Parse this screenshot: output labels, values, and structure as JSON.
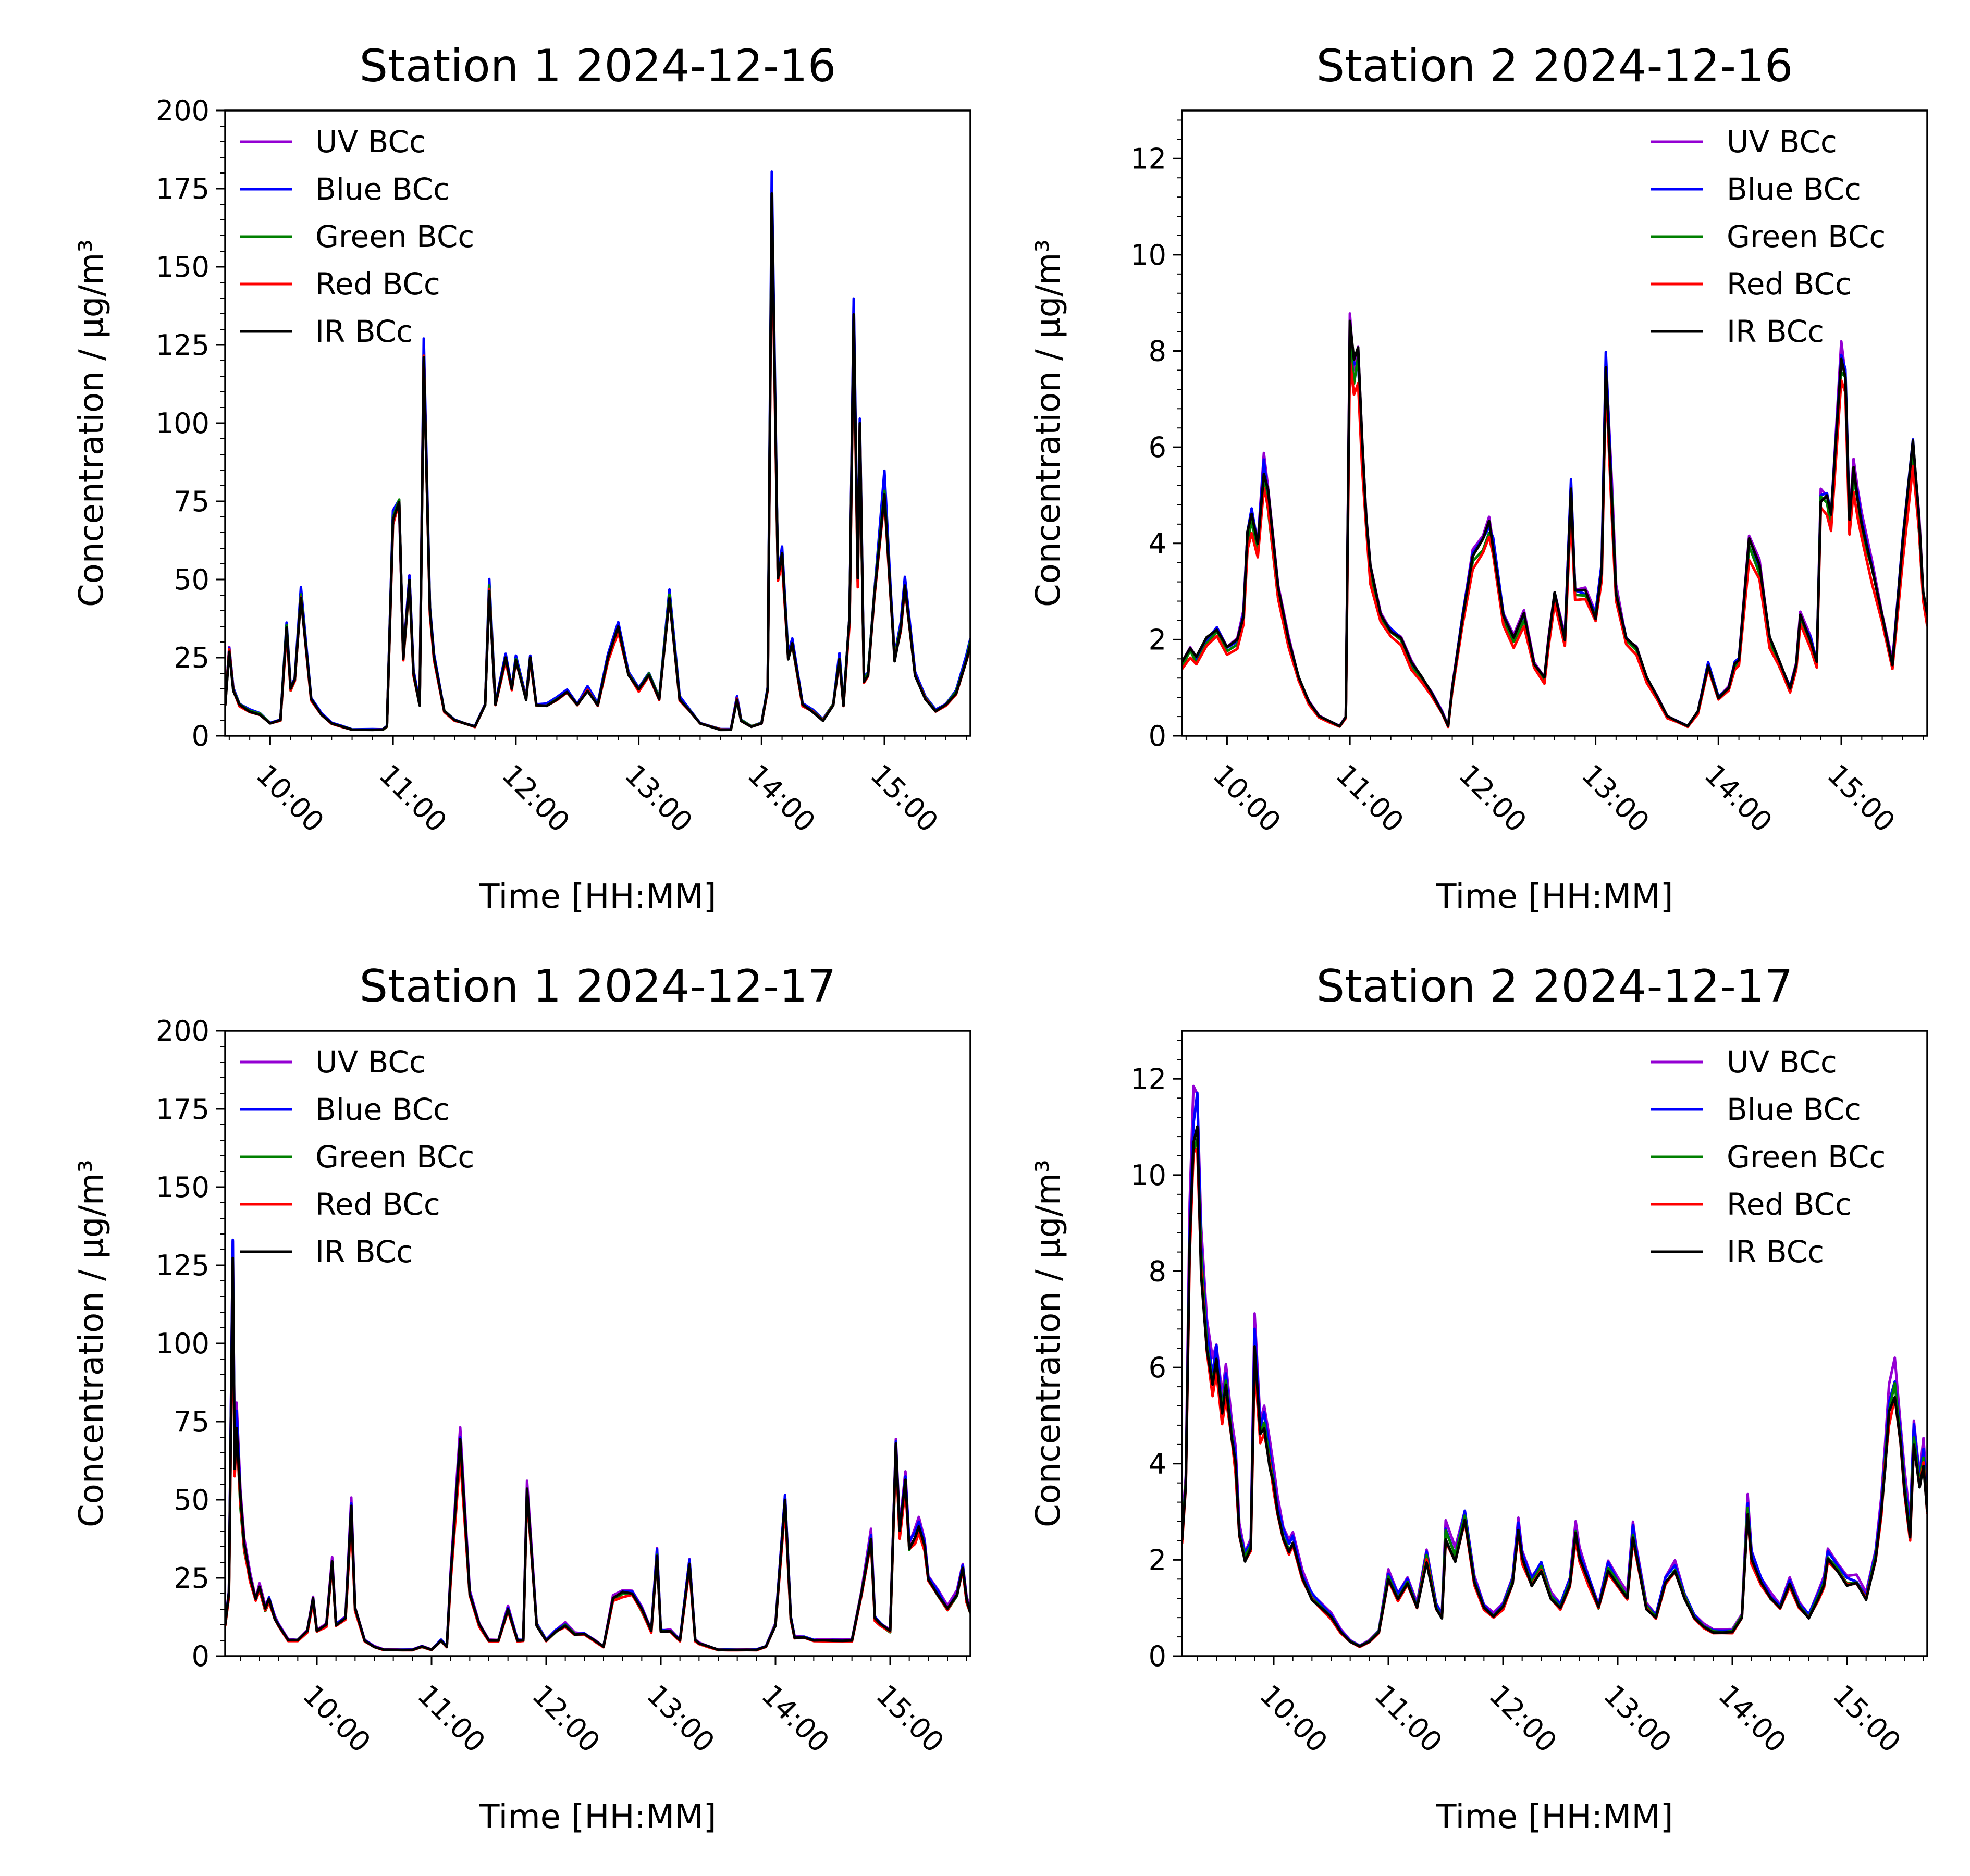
{
  "colors": {
    "UV BCc": "#9400d3",
    "Blue BCc": "#0000ff",
    "Green BCc": "#008000",
    "Red BCc": "#ff0000",
    "IR BCc": "#000000"
  },
  "chart_data": [
    {
      "type": "line",
      "title": "Station 1 2024-12-16",
      "xlabel": "Time [HH:MM]",
      "ylabel": "Concentration / μg/m³",
      "xlim": [
        "09:38",
        "15:42"
      ],
      "ylim": [
        0,
        200
      ],
      "yticks": [
        0,
        25,
        50,
        75,
        100,
        125,
        150,
        175,
        200
      ],
      "xticks": [
        "10:00",
        "11:00",
        "12:00",
        "13:00",
        "14:00",
        "15:00"
      ],
      "grid": false,
      "legend": "top-left",
      "series": [
        {
          "name": "UV BCc",
          "scale": 1.0
        },
        {
          "name": "Blue BCc",
          "scale": 1.03
        },
        {
          "name": "Green BCc",
          "scale": 0.99
        },
        {
          "name": "Red BCc",
          "scale": 0.97
        },
        {
          "name": "IR BCc",
          "scale": 0.98
        }
      ],
      "x": [
        "09:38",
        "09:40",
        "09:42",
        "09:45",
        "09:50",
        "09:55",
        "10:00",
        "10:05",
        "10:08",
        "10:10",
        "10:12",
        "10:15",
        "10:18",
        "10:20",
        "10:25",
        "10:30",
        "10:35",
        "10:40",
        "10:50",
        "10:55",
        "10:57",
        "11:00",
        "11:03",
        "11:05",
        "11:08",
        "11:10",
        "11:13",
        "11:15",
        "11:18",
        "11:20",
        "11:25",
        "11:30",
        "11:35",
        "11:40",
        "11:45",
        "11:47",
        "11:50",
        "11:55",
        "11:58",
        "12:00",
        "12:05",
        "12:07",
        "12:10",
        "12:15",
        "12:20",
        "12:25",
        "12:30",
        "12:35",
        "12:40",
        "12:45",
        "12:50",
        "12:55",
        "13:00",
        "13:05",
        "13:10",
        "13:15",
        "13:20",
        "13:25",
        "13:30",
        "13:40",
        "13:45",
        "13:48",
        "13:50",
        "13:55",
        "14:00",
        "14:03",
        "14:05",
        "14:08",
        "14:10",
        "14:13",
        "14:15",
        "14:20",
        "14:25",
        "14:30",
        "14:35",
        "14:38",
        "14:40",
        "14:43",
        "14:45",
        "14:47",
        "14:48",
        "14:50",
        "14:52",
        "14:55",
        "15:00",
        "15:03",
        "15:05",
        "15:08",
        "15:10",
        "15:15",
        "15:20",
        "15:25",
        "15:30",
        "15:35",
        "15:40",
        "15:42"
      ],
      "values": [
        10,
        28,
        15,
        10,
        8,
        7,
        4,
        5,
        35,
        15,
        18,
        45,
        25,
        12,
        7,
        4,
        3,
        2,
        2,
        2,
        3,
        70,
        75,
        25,
        50,
        20,
        10,
        126,
        40,
        25,
        8,
        5,
        4,
        3,
        10,
        48,
        10,
        25,
        15,
        25,
        12,
        25,
        10,
        10,
        12,
        14,
        10,
        15,
        10,
        25,
        35,
        20,
        15,
        20,
        12,
        45,
        12,
        8,
        4,
        2,
        2,
        12,
        5,
        3,
        4,
        15,
        175,
        50,
        58,
        25,
        30,
        10,
        8,
        5,
        10,
        25,
        10,
        38,
        135,
        50,
        100,
        18,
        20,
        45,
        80,
        45,
        25,
        35,
        48,
        20,
        12,
        8,
        10,
        14,
        25,
        30
      ]
    },
    {
      "type": "line",
      "title": "Station 2 2024-12-16",
      "xlabel": "Time [HH:MM]",
      "ylabel": "Concentration / μg/m³",
      "xlim": [
        "09:38",
        "15:42"
      ],
      "ylim": [
        0,
        13
      ],
      "yticks": [
        0,
        2,
        4,
        6,
        8,
        10,
        12
      ],
      "xticks": [
        "10:00",
        "11:00",
        "12:00",
        "13:00",
        "14:00",
        "15:00"
      ],
      "grid": false,
      "legend": "top-right",
      "series": [
        {
          "name": "UV BCc",
          "scale": 1.02
        },
        {
          "name": "Blue BCc",
          "scale": 1.0
        },
        {
          "name": "Green BCc",
          "scale": 0.97
        },
        {
          "name": "Red BCc",
          "scale": 0.93
        },
        {
          "name": "IR BCc",
          "scale": 1.0
        }
      ],
      "x": [
        "09:38",
        "09:42",
        "09:45",
        "09:50",
        "09:55",
        "10:00",
        "10:05",
        "10:08",
        "10:10",
        "10:12",
        "10:15",
        "10:18",
        "10:20",
        "10:25",
        "10:30",
        "10:35",
        "10:40",
        "10:45",
        "10:50",
        "10:55",
        "10:58",
        "11:00",
        "11:02",
        "11:04",
        "11:06",
        "11:08",
        "11:10",
        "11:15",
        "11:20",
        "11:25",
        "11:30",
        "11:35",
        "11:40",
        "11:45",
        "11:48",
        "11:50",
        "11:55",
        "12:00",
        "12:05",
        "12:08",
        "12:10",
        "12:15",
        "12:20",
        "12:25",
        "12:30",
        "12:35",
        "12:37",
        "12:40",
        "12:45",
        "12:48",
        "12:50",
        "12:55",
        "13:00",
        "13:03",
        "13:05",
        "13:08",
        "13:10",
        "13:15",
        "13:20",
        "13:25",
        "13:30",
        "13:35",
        "13:40",
        "13:45",
        "13:50",
        "13:55",
        "14:00",
        "14:05",
        "14:08",
        "14:10",
        "14:15",
        "14:20",
        "14:25",
        "14:30",
        "14:35",
        "14:38",
        "14:40",
        "14:45",
        "14:48",
        "14:50",
        "14:53",
        "14:55",
        "15:00",
        "15:02",
        "15:04",
        "15:06",
        "15:08",
        "15:10",
        "15:15",
        "15:20",
        "15:25",
        "15:30",
        "15:35",
        "15:38",
        "15:40",
        "15:42"
      ],
      "values": [
        1.5,
        1.8,
        1.6,
        2.0,
        2.2,
        1.8,
        2.0,
        2.5,
        4.2,
        4.6,
        4.0,
        5.6,
        5.0,
        3.0,
        2.0,
        1.2,
        0.7,
        0.4,
        0.3,
        0.2,
        0.4,
        8.4,
        7.6,
        8.0,
        6.0,
        4.5,
        3.5,
        2.5,
        2.2,
        2.0,
        1.5,
        1.2,
        0.9,
        0.5,
        0.2,
        1.0,
        2.5,
        3.8,
        4.0,
        4.4,
        4.0,
        2.5,
        2.0,
        2.5,
        1.5,
        1.2,
        2.0,
        3.0,
        2.0,
        5.2,
        3.0,
        3.0,
        2.5,
        3.5,
        7.8,
        5.0,
        3.0,
        2.0,
        1.8,
        1.2,
        0.8,
        0.4,
        0.3,
        0.2,
        0.5,
        1.5,
        0.8,
        1.0,
        1.5,
        1.6,
        4.0,
        3.5,
        2.0,
        1.5,
        1.0,
        1.5,
        2.5,
        2.0,
        1.5,
        5.0,
        5.0,
        4.5,
        8.0,
        7.5,
        4.5,
        5.5,
        5.0,
        4.5,
        3.5,
        2.5,
        1.5,
        4.0,
        6.0,
        4.5,
        3.0,
        2.5
      ]
    },
    {
      "type": "line",
      "title": "Station 1 2024-12-17",
      "xlabel": "Time [HH:MM]",
      "ylabel": "Concentration / μg/m³",
      "xlim": [
        "09:12",
        "15:42"
      ],
      "ylim": [
        0,
        200
      ],
      "yticks": [
        0,
        25,
        50,
        75,
        100,
        125,
        150,
        175,
        200
      ],
      "xticks": [
        "10:00",
        "11:00",
        "12:00",
        "13:00",
        "14:00",
        "15:00"
      ],
      "grid": false,
      "legend": "top-left",
      "series": [
        {
          "name": "UV BCc",
          "scale": 1.05
        },
        {
          "name": "Blue BCc",
          "scale": 1.02
        },
        {
          "name": "Green BCc",
          "scale": 0.98
        },
        {
          "name": "Red BCc",
          "scale": 0.96
        },
        {
          "name": "IR BCc",
          "scale": 1.0
        }
      ],
      "x": [
        "09:12",
        "09:14",
        "09:16",
        "09:17",
        "09:18",
        "09:20",
        "09:22",
        "09:25",
        "09:28",
        "09:30",
        "09:33",
        "09:35",
        "09:38",
        "09:40",
        "09:45",
        "09:50",
        "09:55",
        "09:58",
        "10:00",
        "10:05",
        "10:08",
        "10:10",
        "10:15",
        "10:18",
        "10:20",
        "10:25",
        "10:30",
        "10:35",
        "10:40",
        "10:45",
        "10:50",
        "10:55",
        "11:00",
        "11:05",
        "11:08",
        "11:10",
        "11:15",
        "11:20",
        "11:25",
        "11:30",
        "11:35",
        "11:40",
        "11:45",
        "11:48",
        "11:50",
        "11:55",
        "12:00",
        "12:05",
        "12:10",
        "12:15",
        "12:20",
        "12:25",
        "12:30",
        "12:35",
        "12:40",
        "12:45",
        "12:50",
        "12:55",
        "12:58",
        "13:00",
        "13:05",
        "13:10",
        "13:15",
        "13:18",
        "13:20",
        "13:25",
        "13:30",
        "13:35",
        "13:40",
        "13:45",
        "13:50",
        "13:55",
        "14:00",
        "14:05",
        "14:08",
        "14:10",
        "14:15",
        "14:20",
        "14:25",
        "14:30",
        "14:35",
        "14:40",
        "14:45",
        "14:50",
        "14:52",
        "14:55",
        "15:00",
        "15:03",
        "15:05",
        "15:08",
        "15:10",
        "15:13",
        "15:15",
        "15:18",
        "15:20",
        "15:25",
        "15:30",
        "15:35",
        "15:38",
        "15:40",
        "15:42"
      ],
      "values": [
        10,
        20,
        127,
        60,
        75,
        50,
        35,
        25,
        18,
        22,
        15,
        18,
        12,
        10,
        5,
        5,
        8,
        18,
        8,
        10,
        30,
        10,
        12,
        47,
        15,
        5,
        3,
        2,
        2,
        2,
        2,
        3,
        2,
        5,
        3,
        25,
        68,
        20,
        10,
        5,
        5,
        15,
        5,
        5,
        53,
        10,
        5,
        8,
        10,
        7,
        7,
        5,
        3,
        18,
        20,
        20,
        15,
        8,
        33,
        8,
        8,
        5,
        30,
        5,
        4,
        3,
        2,
        2,
        2,
        2,
        2,
        3,
        10,
        50,
        12,
        6,
        6,
        5,
        5,
        5,
        5,
        5,
        20,
        38,
        12,
        10,
        8,
        68,
        40,
        55,
        35,
        38,
        42,
        35,
        25,
        20,
        15,
        20,
        28,
        18,
        14
      ]
    },
    {
      "type": "line",
      "title": "Station 2 2024-12-17",
      "xlabel": "Time [HH:MM]",
      "ylabel": "Concentration / μg/m³",
      "xlim": [
        "09:12",
        "15:42"
      ],
      "ylim": [
        0,
        13
      ],
      "yticks": [
        0,
        2,
        4,
        6,
        8,
        10,
        12
      ],
      "xticks": [
        "10:00",
        "11:00",
        "12:00",
        "13:00",
        "14:00",
        "15:00"
      ],
      "grid": false,
      "legend": "top-right",
      "series": [
        {
          "name": "UV BCc",
          "scale": 1.1
        },
        {
          "name": "Blue BCc",
          "scale": 1.06
        },
        {
          "name": "Green BCc",
          "scale": 1.02
        },
        {
          "name": "Red BCc",
          "scale": 0.98
        },
        {
          "name": "IR BCc",
          "scale": 1.0
        }
      ],
      "x": [
        "09:12",
        "09:14",
        "09:16",
        "09:18",
        "09:20",
        "09:22",
        "09:25",
        "09:28",
        "09:30",
        "09:33",
        "09:35",
        "09:38",
        "09:40",
        "09:42",
        "09:45",
        "09:48",
        "09:50",
        "09:53",
        "09:55",
        "09:58",
        "10:00",
        "10:02",
        "10:05",
        "10:08",
        "10:10",
        "10:15",
        "10:20",
        "10:25",
        "10:30",
        "10:35",
        "10:40",
        "10:45",
        "10:50",
        "10:55",
        "11:00",
        "11:05",
        "11:10",
        "11:15",
        "11:20",
        "11:25",
        "11:28",
        "11:30",
        "11:35",
        "11:40",
        "11:45",
        "11:50",
        "11:55",
        "12:00",
        "12:05",
        "12:08",
        "12:10",
        "12:15",
        "12:20",
        "12:25",
        "12:30",
        "12:35",
        "12:38",
        "12:40",
        "12:45",
        "12:50",
        "12:55",
        "13:00",
        "13:05",
        "13:08",
        "13:10",
        "13:15",
        "13:20",
        "13:25",
        "13:30",
        "13:35",
        "13:40",
        "13:45",
        "13:50",
        "13:55",
        "14:00",
        "14:05",
        "14:08",
        "14:10",
        "14:15",
        "14:20",
        "14:25",
        "14:30",
        "14:35",
        "14:40",
        "14:45",
        "14:48",
        "14:50",
        "14:55",
        "15:00",
        "15:05",
        "15:10",
        "15:15",
        "15:18",
        "15:20",
        "15:22",
        "15:25",
        "15:28",
        "15:30",
        "15:33",
        "15:35",
        "15:38",
        "15:40",
        "15:42"
      ],
      "values": [
        2.4,
        3.5,
        8.5,
        10.5,
        10.8,
        8.0,
        6.5,
        5.5,
        6.0,
        5.0,
        5.5,
        4.5,
        4.0,
        2.5,
        2.0,
        2.2,
        6.3,
        4.5,
        4.8,
        4.0,
        3.5,
        3.0,
        2.5,
        2.2,
        2.3,
        1.6,
        1.2,
        1.0,
        0.8,
        0.5,
        0.3,
        0.2,
        0.3,
        0.5,
        1.6,
        1.2,
        1.5,
        1.0,
        2.0,
        1.0,
        0.8,
        2.5,
        2.0,
        2.8,
        1.5,
        1.0,
        0.8,
        1.0,
        1.5,
        2.6,
        2.0,
        1.5,
        1.8,
        1.2,
        1.0,
        1.5,
        2.5,
        2.0,
        1.5,
        1.0,
        1.8,
        1.5,
        1.2,
        2.5,
        2.0,
        1.0,
        0.8,
        1.5,
        1.8,
        1.2,
        0.8,
        0.6,
        0.5,
        0.5,
        0.5,
        0.8,
        3.0,
        2.0,
        1.5,
        1.2,
        1.0,
        1.5,
        1.0,
        0.8,
        1.2,
        1.5,
        2.0,
        1.8,
        1.5,
        1.5,
        1.2,
        2.0,
        3.0,
        4.0,
        5.0,
        5.5,
        4.5,
        3.5,
        2.5,
        4.5,
        3.5,
        4.0,
        3.0
      ]
    }
  ]
}
